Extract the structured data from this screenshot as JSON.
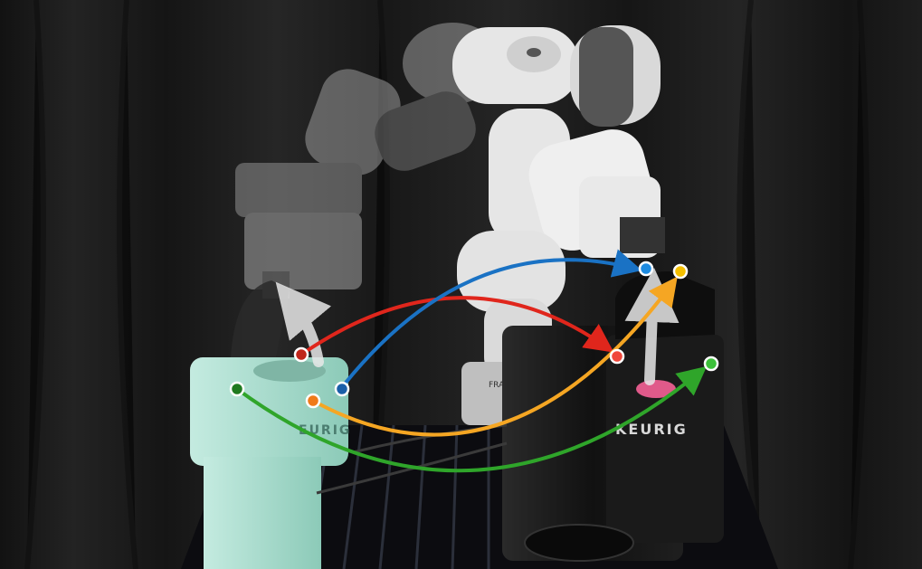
{
  "scene": {
    "machine_left_brand": "EURIG",
    "machine_right_brand": "KEURIG",
    "robot_base_mark": "FRA"
  },
  "colors": {
    "background": "#161616",
    "curtain": "#222222",
    "left_machine": "#a9dccc",
    "right_machine": "#151515",
    "robot_white": "#e6e6e6",
    "robot_ghost": "#8a8a8a",
    "pod_pink": "#e05a8a",
    "arrow_red": "#e0261c",
    "arrow_blue": "#1a72c4",
    "arrow_orange": "#f5a623",
    "arrow_green": "#2fa52a",
    "arrow_white": "#e8e8e8"
  },
  "correspondences": [
    {
      "color": "red"
    },
    {
      "color": "blue"
    },
    {
      "color": "orange"
    },
    {
      "color": "green"
    }
  ]
}
